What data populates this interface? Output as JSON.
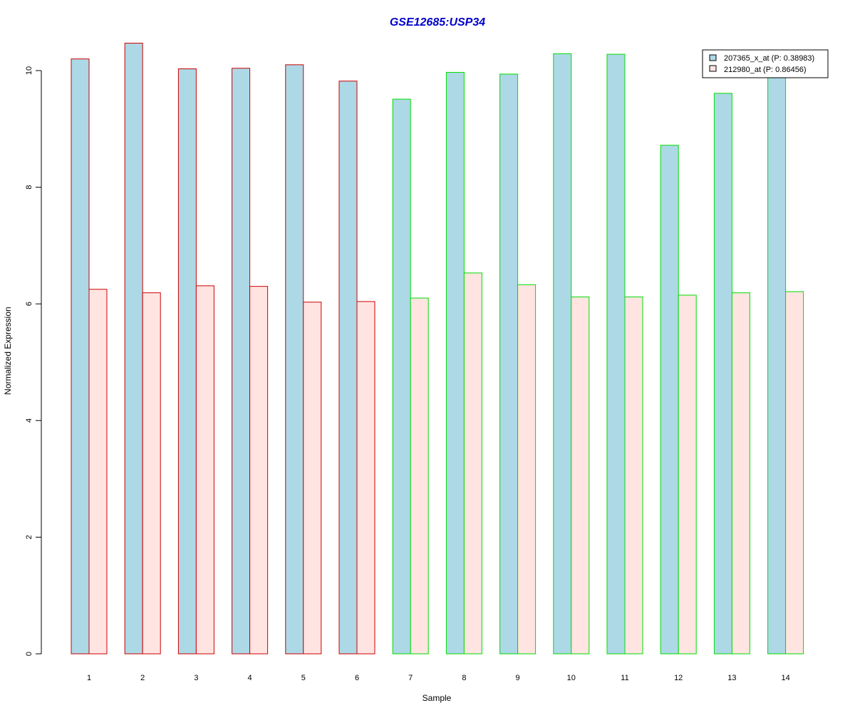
{
  "chart_data": {
    "type": "bar",
    "title": "GSE12685:USP34",
    "xlabel": "Sample",
    "ylabel": "Normalized Expression",
    "ylim": [
      0,
      10.5
    ],
    "yticks": [
      "0",
      "2",
      "4",
      "6",
      "8",
      "10"
    ],
    "categories": [
      "1",
      "2",
      "3",
      "4",
      "5",
      "6",
      "7",
      "8",
      "9",
      "10",
      "11",
      "12",
      "13",
      "14"
    ],
    "group_border_colors": [
      "#cc0000",
      "#cc0000",
      "#cc0000",
      "#cc0000",
      "#cc0000",
      "#cc0000",
      "#00dd00",
      "#00dd00",
      "#00dd00",
      "#00dd00",
      "#00dd00",
      "#00dd00",
      "#00dd00",
      "#00dd00"
    ],
    "series": [
      {
        "name": "207365_x_at (P: 0.38983)",
        "fill": "#add8e6",
        "values": [
          10.2,
          10.47,
          10.03,
          10.04,
          10.1,
          9.82,
          9.51,
          9.97,
          9.94,
          10.29,
          10.28,
          8.72,
          9.61,
          9.92
        ]
      },
      {
        "name": "212980_at (P: 0.86456)",
        "fill": "#ffe4e1",
        "values": [
          6.25,
          6.19,
          6.31,
          6.3,
          6.03,
          6.04,
          6.1,
          6.53,
          6.33,
          6.12,
          6.12,
          6.15,
          6.19,
          6.21
        ]
      }
    ],
    "legend_position": "top-right",
    "title_color": "#0000cc",
    "grid": false
  }
}
